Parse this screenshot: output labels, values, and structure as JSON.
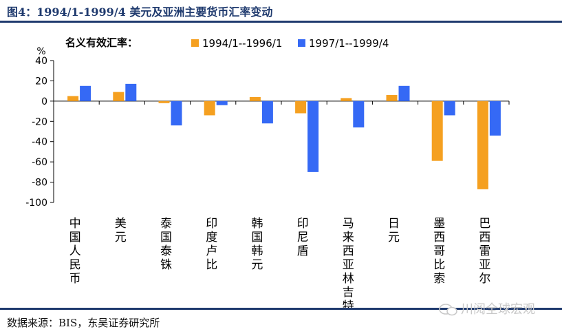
{
  "figure": {
    "title": "图4：1994/1-1999/4 美元及亚洲主要货币汇率变动",
    "source": "数据来源：BIS，东吴证券研究所",
    "watermark": "川阅全球宏观"
  },
  "colors": {
    "title": "#1f3a6e",
    "series1": "#f5a020",
    "series2": "#3569f5"
  },
  "chart_data": {
    "type": "bar",
    "title": "名义有效汇率：",
    "ylabel": "%",
    "xlabel": "",
    "ylim": [
      -100,
      40
    ],
    "yticks": [
      40,
      20,
      0,
      -20,
      -40,
      -60,
      -80,
      -100
    ],
    "grid": false,
    "legend_position": "top",
    "categories": [
      "中国人民币",
      "美元",
      "泰国泰铢",
      "印度卢比",
      "韩国韩元",
      "印尼盾",
      "马来西亚林吉特",
      "日元",
      "墨西哥比索",
      "巴西雷亚尔"
    ],
    "series": [
      {
        "name": "1994/1--1996/1",
        "color": "#f5a020",
        "values": [
          5,
          9,
          -2,
          -14,
          4,
          -12,
          3,
          6,
          -59,
          -87
        ]
      },
      {
        "name": "1997/1--1999/4",
        "color": "#3569f5",
        "values": [
          15,
          17,
          -24,
          -4,
          -22,
          -70,
          -26,
          15,
          -14,
          -34
        ]
      }
    ]
  }
}
